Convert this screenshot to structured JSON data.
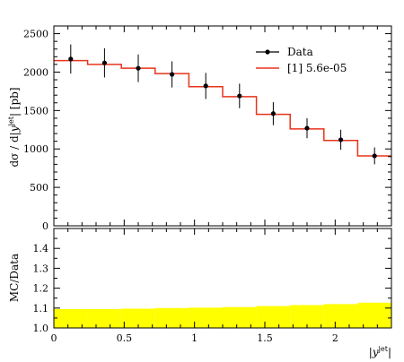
{
  "chart_data": [
    {
      "type": "line",
      "panel": "main",
      "ylabel": "dσ / d|y^jet| [pb]",
      "xlim": [
        0,
        2.4
      ],
      "ylim": [
        0,
        2600
      ],
      "x_ticks": [
        0,
        0.5,
        1,
        1.5,
        2
      ],
      "y_ticks": [
        0,
        500,
        1000,
        1500,
        2000,
        2500
      ],
      "legend_position": "top-right",
      "series": [
        {
          "name": "Data",
          "style": "points-with-errorbars",
          "color": "#000000",
          "x": [
            0.12,
            0.36,
            0.6,
            0.84,
            1.08,
            1.32,
            1.56,
            1.8,
            2.04,
            2.28
          ],
          "y": [
            2170,
            2120,
            2050,
            1970,
            1820,
            1690,
            1460,
            1270,
            1120,
            910
          ],
          "err": [
            190,
            190,
            180,
            170,
            170,
            160,
            150,
            130,
            130,
            110
          ]
        },
        {
          "name": "[1] 5.6e-05",
          "style": "step",
          "color": "#e8331a",
          "bin_edges": [
            0,
            0.24,
            0.48,
            0.72,
            0.96,
            1.2,
            1.44,
            1.68,
            1.92,
            2.16,
            2.4
          ],
          "values": [
            2150,
            2100,
            2050,
            1980,
            1810,
            1680,
            1450,
            1260,
            1110,
            910
          ]
        }
      ]
    },
    {
      "type": "area",
      "panel": "ratio",
      "xlabel": "|y^jet|",
      "ylabel": "MC/Data",
      "xlim": [
        0,
        2.4
      ],
      "ylim": [
        1.0,
        1.5
      ],
      "x_ticks": [
        0,
        0.5,
        1,
        1.5,
        2
      ],
      "y_ticks": [
        1.0,
        1.1,
        1.2,
        1.3,
        1.4
      ],
      "series": [
        {
          "style": "band",
          "color": "#ffff00",
          "bin_edges": [
            0,
            0.24,
            0.48,
            0.72,
            0.96,
            1.2,
            1.44,
            1.68,
            1.92,
            2.16,
            2.4
          ],
          "lower": [
            1.0,
            1.0,
            1.0,
            1.0,
            1.0,
            1.0,
            1.0,
            1.0,
            1.0,
            1.0
          ],
          "upper": [
            1.095,
            1.095,
            1.097,
            1.1,
            1.102,
            1.105,
            1.11,
            1.115,
            1.12,
            1.127
          ]
        }
      ]
    }
  ],
  "legend": {
    "data_label": "Data",
    "mc_label": "[1] 5.6e-05"
  },
  "axes": {
    "main_ylabel_prefix": "dσ / d|",
    "main_ylabel_y": "y",
    "main_ylabel_sup": "jet",
    "main_ylabel_suffix": "| [pb]",
    "ratio_ylabel": "MC/Data",
    "xlabel_prefix": "|",
    "xlabel_y": "y",
    "xlabel_sup": "jet",
    "xlabel_suffix": "|"
  }
}
